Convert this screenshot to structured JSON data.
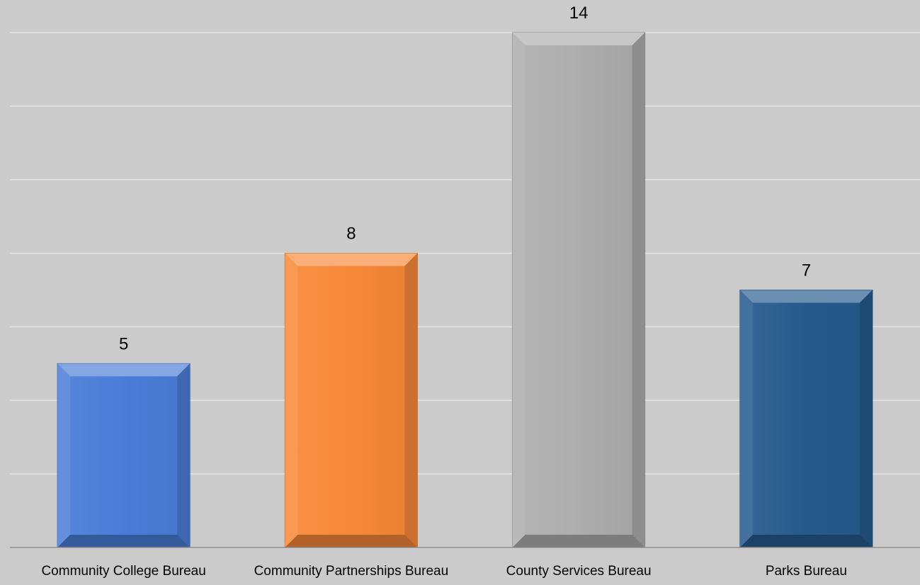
{
  "chart_data": {
    "type": "bar",
    "title": "",
    "xlabel": "",
    "ylabel": "",
    "categories": [
      "Community College Bureau",
      "Community Partnerships Bureau",
      "County Services Bureau",
      "Parks Bureau"
    ],
    "values": [
      5,
      8,
      14,
      7
    ],
    "ylim": [
      0,
      14
    ],
    "grid_step": 2,
    "grid": true,
    "legend": "none",
    "data_labels": true,
    "colors": [
      "#4a7dd8",
      "#f78838",
      "#adadad",
      "#265a8c"
    ],
    "style": "beveled 3D bars"
  }
}
